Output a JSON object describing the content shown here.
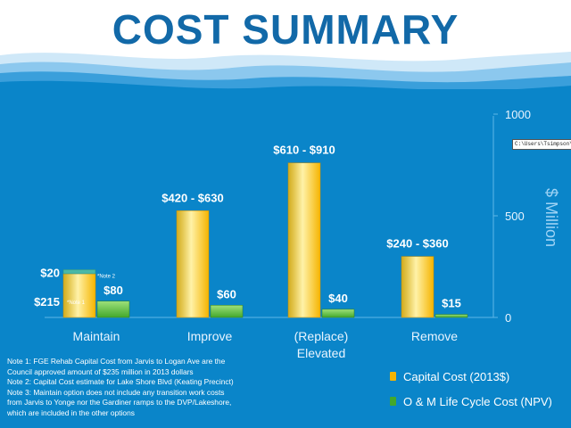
{
  "title": "COST SUMMARY",
  "colors": {
    "title": "#1269a8",
    "background": "#0a85c9",
    "capital": "#f5b400",
    "om": "#43a82c",
    "maintain_om_top": "#4ab8a6"
  },
  "chart_data": {
    "type": "bar",
    "title": "COST SUMMARY",
    "xlabel": "",
    "ylabel": "$ Million",
    "ylim": [
      0,
      1000
    ],
    "yticks": [
      0,
      500,
      1000
    ],
    "categories": [
      "Maintain",
      "Improve",
      "(Replace)\nElevated",
      "Remove"
    ],
    "category_lines": [
      [
        "Maintain"
      ],
      [
        "Improve"
      ],
      [
        "(Replace)",
        "Elevated"
      ],
      [
        "Remove"
      ]
    ],
    "series": [
      {
        "name": "Capital Cost (2013$)",
        "color": "#f5b400",
        "values": [
          215,
          525,
          760,
          300
        ],
        "stacked_extra": [
          {
            "category_index": 0,
            "value": 20,
            "label": "$20",
            "note": "*Note 2",
            "color": "#4ab8a6"
          }
        ],
        "labels": [
          "$215",
          "$420 - $630",
          "$610 - $910",
          "$240 - $360"
        ],
        "notes": [
          "*Note 1",
          "",
          "",
          ""
        ]
      },
      {
        "name": "O & M Life Cycle Cost (NPV)",
        "color": "#43a82c",
        "values": [
          80,
          60,
          40,
          15
        ],
        "labels": [
          "$80",
          "$60",
          "$40",
          "$15"
        ]
      }
    ],
    "legend": "bottom-right",
    "grid": false
  },
  "notes": [
    "Note 1: FGE Rehab Capital Cost from Jarvis to Logan Ave are the",
    "Council approved amount of $235 million in 2013 dollars",
    "Note 2: Capital Cost estimate for Lake Shore Blvd (Keating Precinct)",
    "Note 3: Maintain option does not include any  transition work costs",
    "from Jarvis to Yonge nor the Gardiner ramps to the DVP/Lakeshore,",
    "which are included in the other options"
  ],
  "path_box": "C:\\Users\\Tsimpson\\Des"
}
